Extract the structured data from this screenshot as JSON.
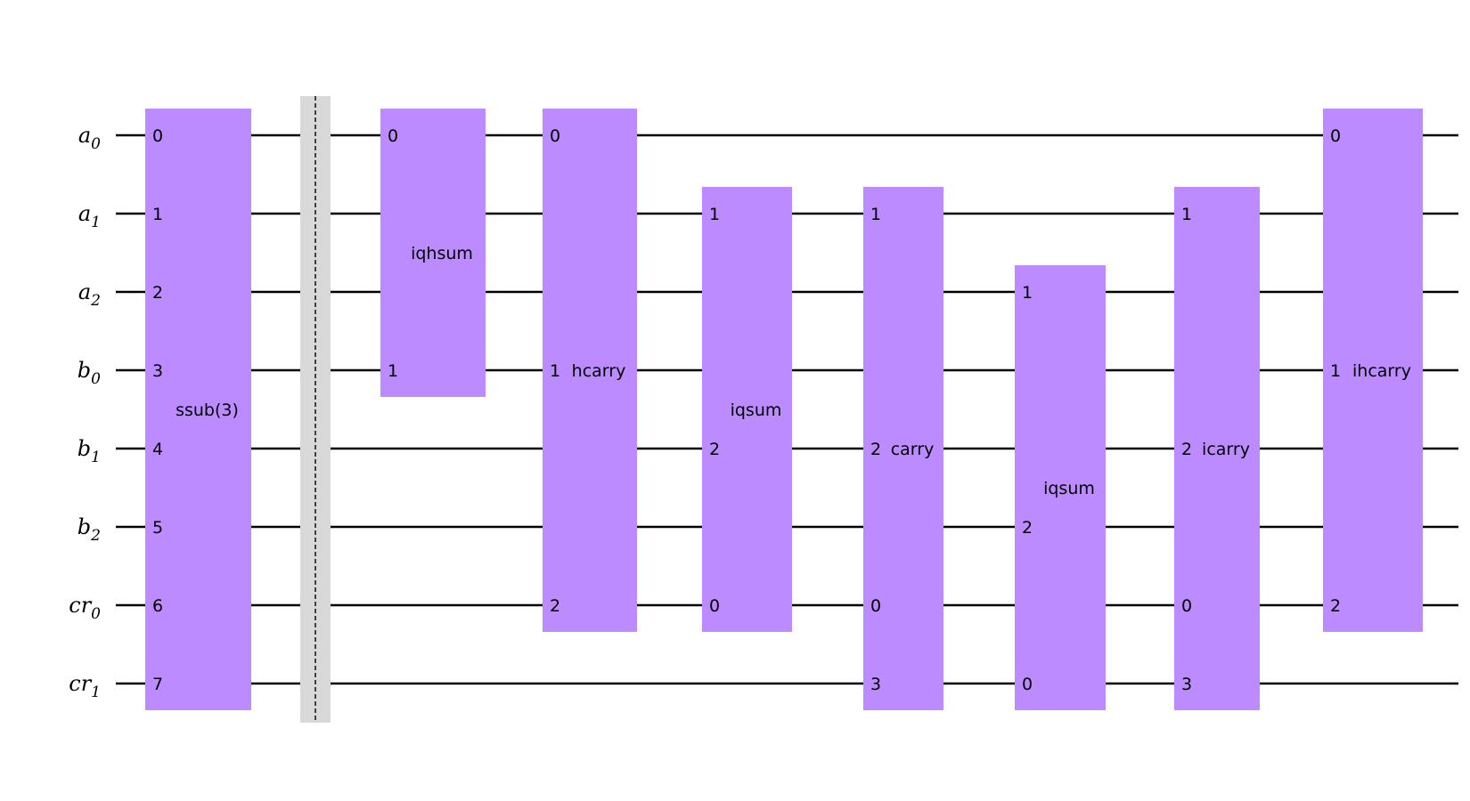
{
  "qubits": [
    {
      "name": "a",
      "index": "0"
    },
    {
      "name": "a",
      "index": "1"
    },
    {
      "name": "a",
      "index": "2"
    },
    {
      "name": "b",
      "index": "0"
    },
    {
      "name": "b",
      "index": "1"
    },
    {
      "name": "b",
      "index": "2"
    },
    {
      "name": "cr",
      "index": "0"
    },
    {
      "name": "cr",
      "index": "1"
    }
  ],
  "colors": {
    "gate": "#bb8bff",
    "barrier": "#d9d9d9",
    "wire": "#000000"
  },
  "gates": [
    {
      "name": "ssub(3)",
      "wires": [
        0,
        1,
        2,
        3,
        4,
        5,
        6,
        7
      ],
      "pins": [
        "0",
        "1",
        "2",
        "3",
        "4",
        "5",
        "6",
        "7"
      ]
    },
    {
      "name": "iqhsum",
      "wires": [
        0,
        3
      ],
      "pins": [
        "0",
        "1"
      ]
    },
    {
      "name": "hcarry",
      "wires": [
        0,
        3,
        6
      ],
      "pins": [
        "0",
        "1",
        "2"
      ]
    },
    {
      "name": "iqsum",
      "wires": [
        1,
        4,
        6
      ],
      "pins": [
        "1",
        "2",
        "0"
      ]
    },
    {
      "name": "carry",
      "wires": [
        1,
        4,
        6,
        7
      ],
      "pins": [
        "1",
        "2",
        "0",
        "3"
      ]
    },
    {
      "name": "iqsum",
      "wires": [
        2,
        5,
        7
      ],
      "pins": [
        "1",
        "2",
        "0"
      ]
    },
    {
      "name": "icarry",
      "wires": [
        1,
        4,
        6,
        7
      ],
      "pins": [
        "1",
        "2",
        "0",
        "3"
      ]
    },
    {
      "name": "ihcarry",
      "wires": [
        0,
        3,
        6
      ],
      "pins": [
        "0",
        "1",
        "2"
      ]
    }
  ],
  "barrier": {
    "wires": [
      0,
      1,
      2,
      3,
      4,
      5,
      6,
      7
    ]
  }
}
